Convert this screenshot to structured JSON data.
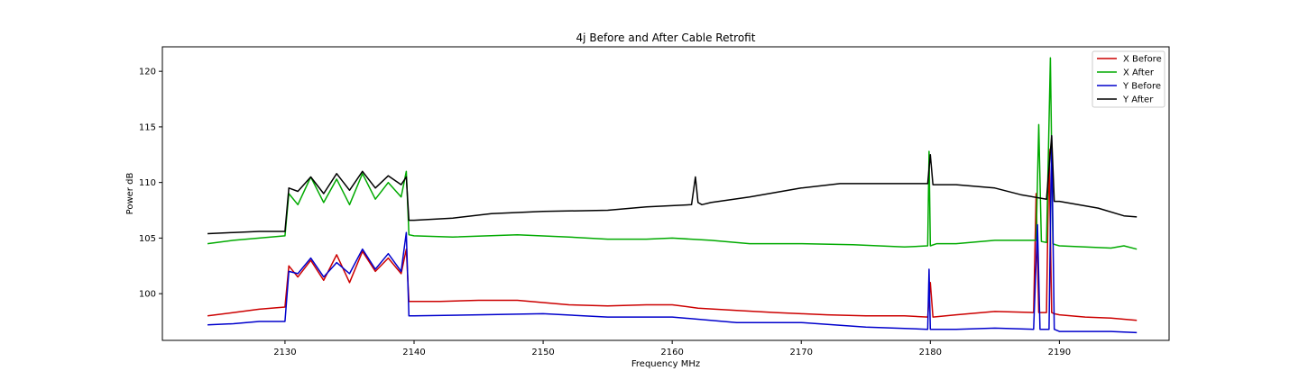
{
  "chart_data": {
    "type": "line",
    "title": "4j Before and After Cable Retrofit",
    "xlabel": "Frequency MHz",
    "ylabel": "Power dB",
    "xlim": [
      2120.5,
      2198.5
    ],
    "ylim": [
      95.8,
      122.2
    ],
    "xticks": [
      2130,
      2140,
      2150,
      2160,
      2170,
      2180,
      2190
    ],
    "yticks": [
      100,
      105,
      110,
      115,
      120
    ],
    "grid": false,
    "legend_position": "top-right",
    "series": [
      {
        "name": "X Before",
        "color": "#cc0000",
        "x": [
          2124,
          2126,
          2128,
          2130,
          2130.3,
          2131,
          2132,
          2133,
          2134,
          2135,
          2136,
          2137,
          2138,
          2139,
          2139.4,
          2139.6,
          2140,
          2142,
          2145,
          2148,
          2150,
          2152,
          2155,
          2158,
          2160,
          2162,
          2165,
          2168,
          2170,
          2172,
          2175,
          2178,
          2179.8,
          2180,
          2180.2,
          2182,
          2185,
          2188,
          2188.2,
          2188.4,
          2188.6,
          2189,
          2189.2,
          2189.4,
          2189.6,
          2190,
          2192,
          2194,
          2196
        ],
        "y": [
          98.0,
          98.3,
          98.6,
          98.8,
          102.5,
          101.5,
          103.0,
          101.2,
          103.5,
          101.0,
          103.8,
          102.0,
          103.2,
          101.8,
          104.0,
          99.3,
          99.3,
          99.3,
          99.4,
          99.4,
          99.2,
          99.0,
          98.9,
          99.0,
          99.0,
          98.7,
          98.5,
          98.3,
          98.2,
          98.1,
          98.0,
          98.0,
          97.9,
          101.0,
          97.9,
          98.1,
          98.4,
          98.3,
          109.0,
          98.3,
          98.3,
          98.3,
          113.0,
          98.3,
          98.2,
          98.1,
          97.9,
          97.8,
          97.6
        ]
      },
      {
        "name": "X After",
        "color": "#00aa00",
        "x": [
          2124,
          2126,
          2128,
          2130,
          2130.3,
          2131,
          2132,
          2133,
          2134,
          2135,
          2136,
          2137,
          2138,
          2139,
          2139.4,
          2139.6,
          2140,
          2143,
          2148,
          2152,
          2155,
          2158,
          2160,
          2163,
          2166,
          2170,
          2174,
          2178,
          2179.8,
          2179.9,
          2180,
          2180.5,
          2182,
          2185,
          2187,
          2188.2,
          2188.4,
          2188.6,
          2189,
          2189.3,
          2189.5,
          2189.7,
          2190,
          2192,
          2194,
          2195,
          2196
        ],
        "y": [
          104.5,
          104.8,
          105.0,
          105.2,
          109.0,
          108.0,
          110.5,
          108.2,
          110.3,
          108.0,
          110.8,
          108.5,
          110.0,
          108.7,
          111.0,
          105.3,
          105.2,
          105.1,
          105.3,
          105.1,
          104.9,
          104.9,
          105.0,
          104.8,
          104.5,
          104.5,
          104.4,
          104.2,
          104.3,
          112.8,
          104.3,
          104.5,
          104.5,
          104.8,
          104.8,
          104.8,
          115.2,
          104.7,
          104.6,
          121.2,
          104.5,
          104.4,
          104.3,
          104.2,
          104.1,
          104.3,
          104.0
        ]
      },
      {
        "name": "Y Before",
        "color": "#0000cc",
        "x": [
          2124,
          2126,
          2128,
          2130,
          2130.3,
          2131,
          2132,
          2133,
          2134,
          2135,
          2136,
          2137,
          2138,
          2139,
          2139.4,
          2139.6,
          2140,
          2145,
          2150,
          2155,
          2160,
          2165,
          2170,
          2175,
          2179.8,
          2179.9,
          2180,
          2182,
          2185,
          2188,
          2188.3,
          2188.5,
          2188.7,
          2189.2,
          2189.4,
          2189.6,
          2190,
          2192,
          2194,
          2196
        ],
        "y": [
          97.2,
          97.3,
          97.5,
          97.5,
          102.0,
          101.8,
          103.2,
          101.5,
          102.8,
          101.8,
          104.0,
          102.2,
          103.6,
          102.0,
          105.5,
          98.0,
          98.0,
          98.1,
          98.2,
          97.9,
          97.9,
          97.4,
          97.4,
          97.0,
          96.8,
          102.2,
          96.8,
          96.8,
          96.9,
          96.8,
          106.2,
          96.8,
          96.8,
          96.8,
          114.2,
          96.8,
          96.6,
          96.6,
          96.6,
          96.5
        ]
      },
      {
        "name": "Y After",
        "color": "#000000",
        "x": [
          2124,
          2126,
          2128,
          2130,
          2130.3,
          2131,
          2132,
          2133,
          2134,
          2135,
          2136,
          2137,
          2138,
          2139,
          2139.4,
          2139.6,
          2140,
          2143,
          2146,
          2150,
          2155,
          2158,
          2161.5,
          2161.8,
          2162,
          2162.3,
          2163,
          2166,
          2170,
          2173,
          2176,
          2179.8,
          2180,
          2180.2,
          2182,
          2185,
          2187,
          2189,
          2189.4,
          2189.6,
          2190,
          2193,
          2195,
          2196
        ],
        "y": [
          105.4,
          105.5,
          105.6,
          105.6,
          109.5,
          109.2,
          110.5,
          109.0,
          110.8,
          109.3,
          111.0,
          109.5,
          110.6,
          109.8,
          110.5,
          106.6,
          106.6,
          106.8,
          107.2,
          107.4,
          107.5,
          107.8,
          108.0,
          110.5,
          108.2,
          108.0,
          108.2,
          108.7,
          109.5,
          109.9,
          109.9,
          109.9,
          112.5,
          109.8,
          109.8,
          109.5,
          108.9,
          108.5,
          114.2,
          108.3,
          108.3,
          107.7,
          107.0,
          106.9
        ]
      }
    ]
  }
}
